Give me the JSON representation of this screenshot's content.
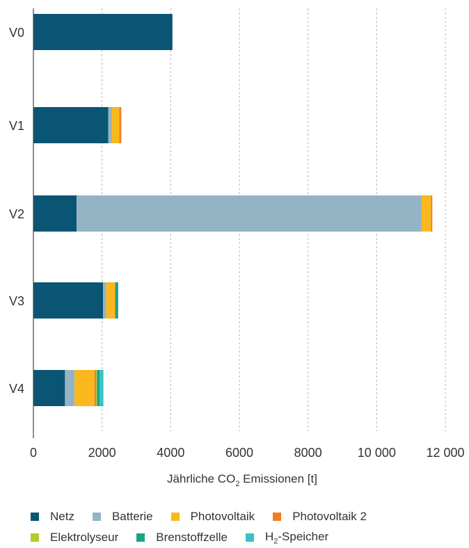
{
  "chart_data": {
    "type": "bar",
    "orientation": "horizontal",
    "stacked": true,
    "categories": [
      "V0",
      "V1",
      "V2",
      "V3",
      "V4"
    ],
    "series": [
      {
        "name": "Netz",
        "color": "#0b5574",
        "values": [
          4050,
          2180,
          1260,
          2030,
          920
        ]
      },
      {
        "name": "Batterie",
        "color": "#94b4c5",
        "values": [
          0,
          110,
          10050,
          90,
          280
        ]
      },
      {
        "name": "Photovoltaik",
        "color": "#fbb81c",
        "values": [
          0,
          210,
          270,
          250,
          580
        ]
      },
      {
        "name": "Photovoltaik 2",
        "color": "#ef7d22",
        "values": [
          0,
          60,
          40,
          20,
          50
        ]
      },
      {
        "name": "Elektrolyseur",
        "color": "#b4cc2d",
        "values": [
          0,
          0,
          0,
          0,
          20
        ]
      },
      {
        "name": "Brenstoffzelle",
        "color": "#1aa487",
        "values": [
          0,
          0,
          0,
          80,
          80
        ]
      },
      {
        "name": "H2-Speicher",
        "color": "#39c2c5",
        "values": [
          0,
          0,
          0,
          0,
          110
        ]
      }
    ],
    "xlabel": "Jährliche CO2 Emissionen [t]",
    "xlim": [
      0,
      12000
    ],
    "xticks": [
      0,
      2000,
      4000,
      6000,
      8000,
      10000,
      12000
    ],
    "xtick_labels": [
      "0",
      "2000",
      "4000",
      "6000",
      "8000",
      "10 000",
      "12 000"
    ],
    "grid": "vertical-dotted",
    "legend_position": "bottom"
  },
  "xlabel_parts": {
    "pre": "Jährliche CO",
    "sub": "2",
    "post": " Emissionen [t]"
  },
  "legend": [
    [
      {
        "label": "Netz",
        "color": "#0b5574"
      },
      {
        "label": "Batterie",
        "color": "#94b4c5"
      },
      {
        "label": "Photovoltaik",
        "color": "#fbb81c"
      },
      {
        "label": "Photovoltaik 2",
        "color": "#ef7d22"
      }
    ],
    [
      {
        "label": "Elektrolyseur",
        "color": "#b4cc2d"
      },
      {
        "label": "Brenstoffzelle",
        "color": "#1aa487"
      },
      {
        "label": "H",
        "sub": "2",
        "post": "-Speicher",
        "color": "#39c2c5"
      }
    ]
  ]
}
